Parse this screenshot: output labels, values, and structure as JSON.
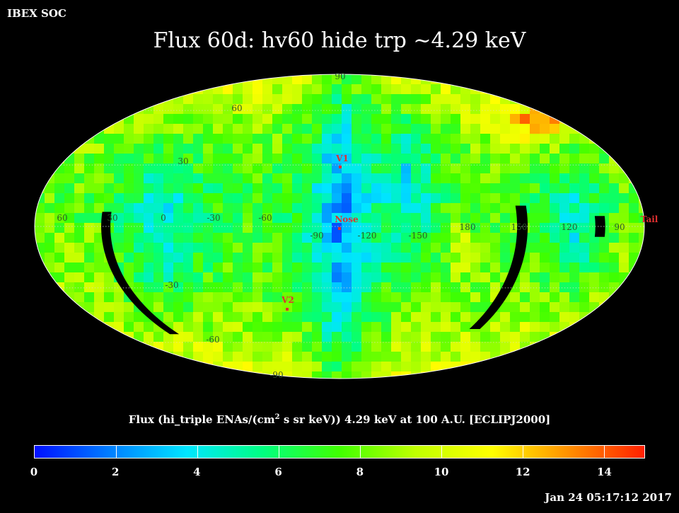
{
  "header": {
    "org": "IBEX SOC",
    "title": "Flux   60d: hv60 hide trp ~4.29 keV"
  },
  "map": {
    "projection": "Mollweide (ecliptic)",
    "lon_labels": [
      "60",
      "30",
      "0",
      "-30",
      "-60",
      "-90",
      "-120",
      "-150",
      "180",
      "150",
      "120",
      "90"
    ],
    "lat_labels": [
      "90",
      "60",
      "30",
      "-30",
      "-60",
      "-90"
    ],
    "markers": [
      {
        "label": "V1",
        "color": "#e03030"
      },
      {
        "label": "Nose",
        "color": "#e03030"
      },
      {
        "label": "V2",
        "color": "#e03030"
      },
      {
        "label": "Tail",
        "color": "#e03030"
      }
    ]
  },
  "colorbar": {
    "title_pre": "Flux (hi_triple ENAs/(cm",
    "title_sup": "2",
    "title_post": " s sr keV))  4.29 keV at 100 A.U. [ECLIPJ2000]",
    "min": 0,
    "max": 15,
    "ticks": [
      "0",
      "2",
      "4",
      "6",
      "8",
      "10",
      "12",
      "14"
    ],
    "colors": [
      "#0010ff",
      "#0080ff",
      "#00e6ff",
      "#00ff80",
      "#40ff00",
      "#c0ff00",
      "#ffff00",
      "#ff9000",
      "#ff2000"
    ]
  },
  "footer": {
    "timestamp": "Jan 24 05:17:12 2017"
  }
}
